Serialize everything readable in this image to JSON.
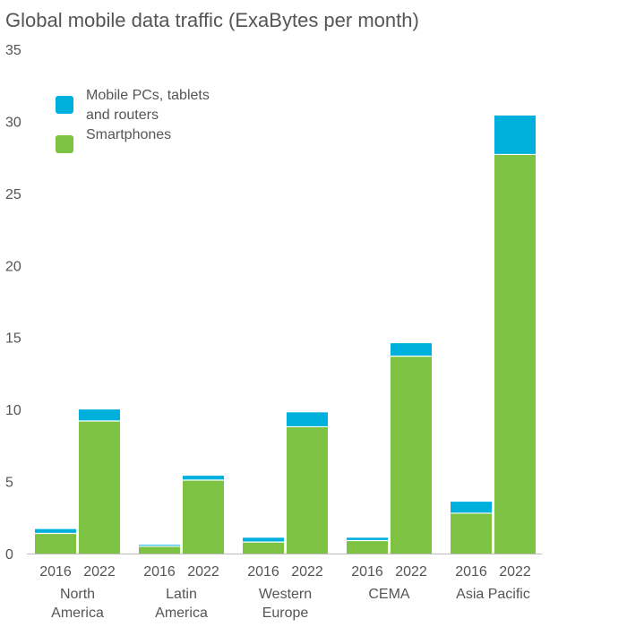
{
  "chart_data": {
    "type": "bar",
    "stacked": true,
    "title": "Global mobile data traffic (ExaBytes per month)",
    "xlabel": "",
    "ylabel": "",
    "ylim": [
      0,
      35
    ],
    "yticks": [
      "0",
      "5",
      "10",
      "15",
      "20",
      "25",
      "30",
      "35"
    ],
    "grid": false,
    "legend_position": "top-left",
    "groups": [
      {
        "label_lines": [
          "North",
          "America"
        ],
        "years": [
          "2016",
          "2022"
        ]
      },
      {
        "label_lines": [
          "Latin",
          "America"
        ],
        "years": [
          "2016",
          "2022"
        ]
      },
      {
        "label_lines": [
          "Western",
          "Europe"
        ],
        "years": [
          "2016",
          "2022"
        ]
      },
      {
        "label_lines": [
          "CEMA"
        ],
        "years": [
          "2016",
          "2022"
        ]
      },
      {
        "label_lines": [
          "Asia Pacific"
        ],
        "years": [
          "2016",
          "2022"
        ]
      }
    ],
    "series": [
      {
        "name": "Smartphones",
        "color": "#7dc242",
        "values": [
          [
            1.4,
            9.2
          ],
          [
            0.5,
            5.1
          ],
          [
            0.8,
            8.8
          ],
          [
            0.9,
            13.7
          ],
          [
            2.8,
            27.7
          ]
        ]
      },
      {
        "name": "Mobile PCs, tablets and routers",
        "legend_lines": [
          "Mobile PCs, tablets",
          "and routers"
        ],
        "color": "#00b0dc",
        "values": [
          [
            0.3,
            0.8
          ],
          [
            0.1,
            0.3
          ],
          [
            0.3,
            1.0
          ],
          [
            0.2,
            0.9
          ],
          [
            0.8,
            2.7
          ]
        ]
      }
    ]
  }
}
